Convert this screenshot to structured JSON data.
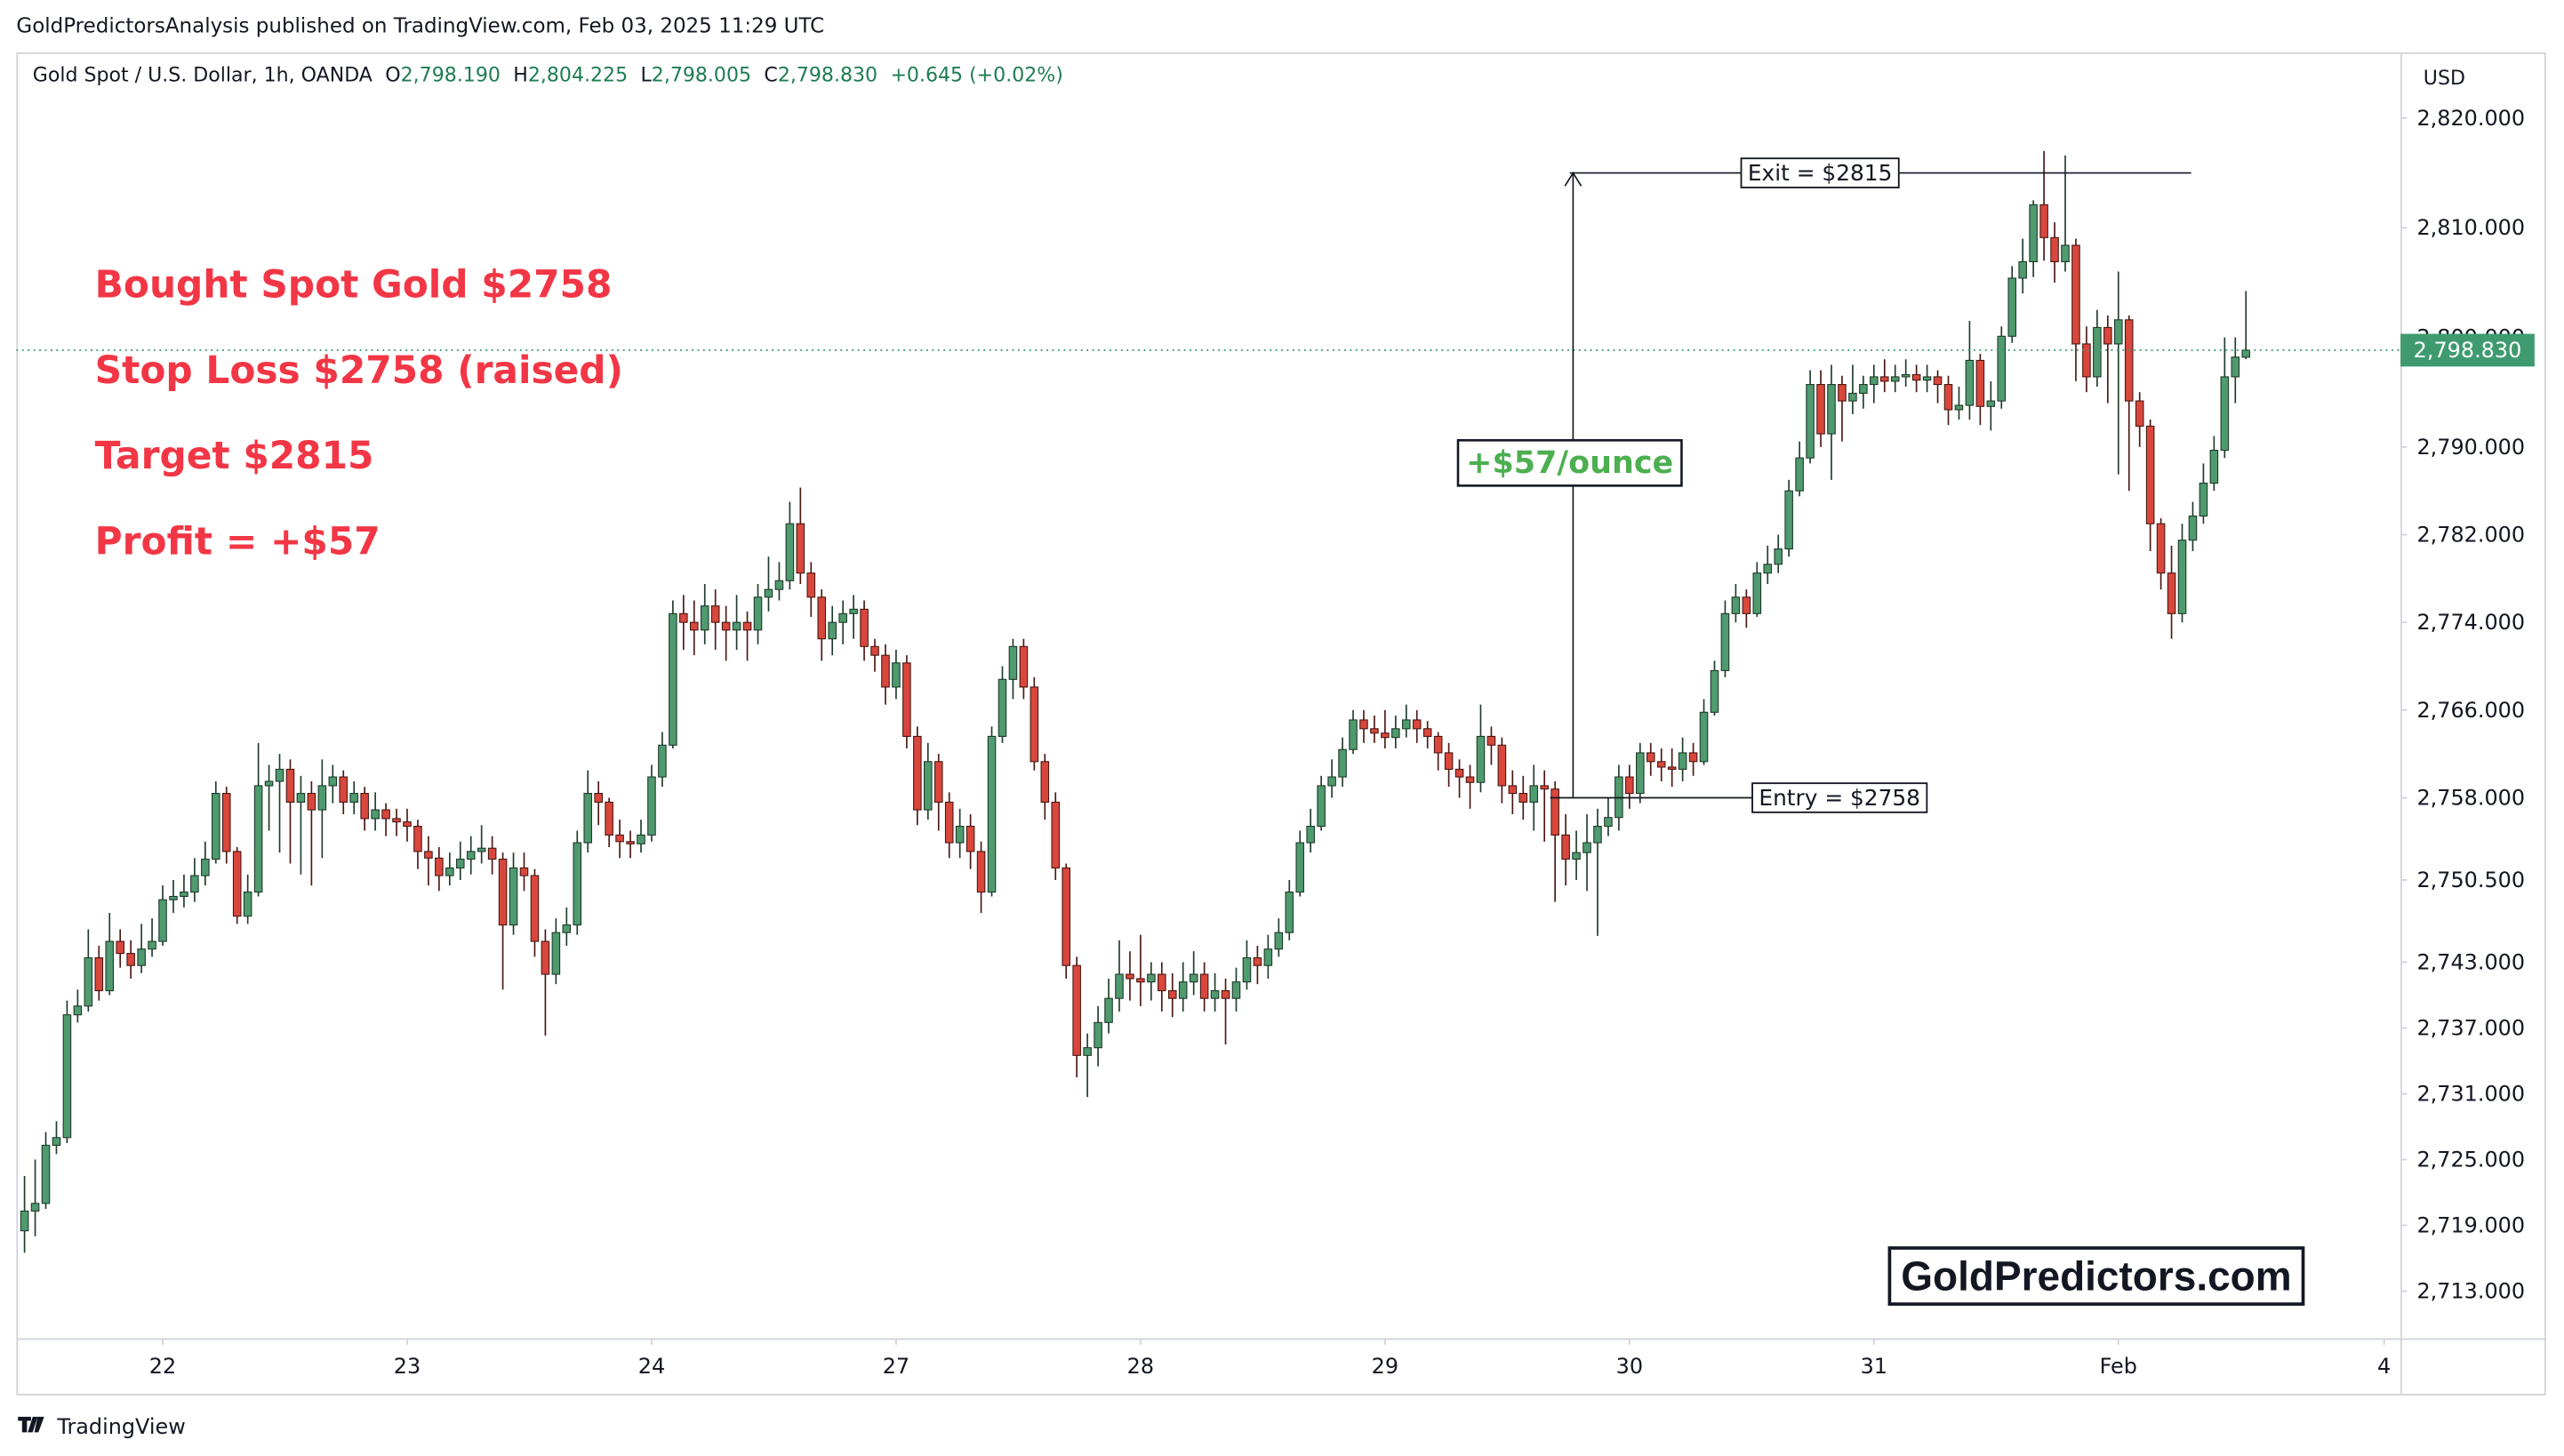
{
  "published": "GoldPredictorsAnalysis published on TradingView.com, Feb 03, 2025 11:29 UTC",
  "header": {
    "symbol": "Gold Spot / U.S. Dollar, 1h, OANDA",
    "fields": [
      {
        "label": "O",
        "value": "2,798.190"
      },
      {
        "label": "H",
        "value": "2,804.225"
      },
      {
        "label": "L",
        "value": "2,798.005"
      },
      {
        "label": "C",
        "value": "2,798.830"
      }
    ],
    "change": "+0.645 (+0.02%)"
  },
  "chart_data": {
    "type": "candlestick",
    "currency": "USD",
    "up_color": "#4f9a6e",
    "down_color": "#d9473c",
    "grid": false,
    "xlim": [
      -0.77,
      223.54
    ],
    "xticks": [
      {
        "value": 13,
        "label": "22"
      },
      {
        "value": 36,
        "label": "23"
      },
      {
        "value": 59,
        "label": "24"
      },
      {
        "value": 82,
        "label": "27"
      },
      {
        "value": 105,
        "label": "28"
      },
      {
        "value": 128,
        "label": "29"
      },
      {
        "value": 151,
        "label": "30"
      },
      {
        "value": 174,
        "label": "31"
      },
      {
        "value": 197,
        "label": "Feb"
      },
      {
        "value": 222,
        "label": "4"
      }
    ],
    "ylim": [
      2708.7,
      2826.0
    ],
    "yticks": [
      {
        "value": 2820,
        "label": "2,820.000"
      },
      {
        "value": 2810,
        "label": "2,810.000"
      },
      {
        "value": 2800,
        "label": "2,800.000"
      },
      {
        "value": 2790,
        "label": "2,790.000"
      },
      {
        "value": 2782,
        "label": "2,782.000"
      },
      {
        "value": 2774,
        "label": "2,774.000"
      },
      {
        "value": 2766,
        "label": "2,766.000"
      },
      {
        "value": 2758,
        "label": "2,758.000"
      },
      {
        "value": 2750.5,
        "label": "2,750.500"
      },
      {
        "value": 2743,
        "label": "2,743.000"
      },
      {
        "value": 2737,
        "label": "2,737.000"
      },
      {
        "value": 2731,
        "label": "2,731.000"
      },
      {
        "value": 2725,
        "label": "2,725.000"
      },
      {
        "value": 2719,
        "label": "2,719.000"
      },
      {
        "value": 2713,
        "label": "2,713.000"
      }
    ],
    "last_price": {
      "value": 2798.83,
      "label": "2,798.830"
    },
    "notes": [
      "Bought Spot Gold $2758",
      "Stop Loss $2758 (raised)",
      "Target $2815",
      "Profit = +$57"
    ],
    "levels": [
      {
        "label": "Exit = $2815",
        "value": 2815
      },
      {
        "label": "Entry = $2758",
        "value": 2758
      }
    ],
    "gain_label": "+$57/ounce",
    "open": [
      2718.5,
      2720.3,
      2721.0,
      2726.3,
      2727.0,
      2738.2,
      2739.0,
      2743.4,
      2740.4,
      2744.9,
      2743.8,
      2742.7,
      2744.2,
      2744.9,
      2748.7,
      2749.0,
      2749.4,
      2750.9,
      2752.4,
      2758.4,
      2753.1,
      2747.2,
      2749.4,
      2759.1,
      2759.5,
      2760.6,
      2757.6,
      2758.4,
      2756.9,
      2759.1,
      2759.9,
      2757.6,
      2758.4,
      2756.1,
      2756.9,
      2756.1,
      2755.8,
      2755.4,
      2753.1,
      2752.5,
      2750.9,
      2751.6,
      2752.4,
      2753.1,
      2753.4,
      2752.4,
      2746.4,
      2751.6,
      2750.9,
      2744.9,
      2741.9,
      2745.7,
      2746.4,
      2753.9,
      2758.4,
      2757.6,
      2754.6,
      2754.0,
      2753.8,
      2754.6,
      2759.9,
      2762.8,
      2774.8,
      2774.0,
      2773.3,
      2775.5,
      2774.0,
      2773.3,
      2774.0,
      2773.3,
      2776.3,
      2777.0,
      2777.8,
      2783.0,
      2778.5,
      2776.3,
      2772.5,
      2774.0,
      2774.8,
      2775.2,
      2771.8,
      2771.0,
      2768.1,
      2770.3,
      2763.6,
      2756.9,
      2761.3,
      2757.6,
      2753.9,
      2755.4,
      2753.1,
      2749.4,
      2763.6,
      2768.8,
      2771.8,
      2768.1,
      2761.3,
      2757.6,
      2751.6,
      2742.7,
      2734.5,
      2735.2,
      2737.5,
      2739.7,
      2741.9,
      2741.5,
      2741.2,
      2741.9,
      2740.4,
      2739.7,
      2741.2,
      2741.9,
      2739.7,
      2740.4,
      2739.7,
      2741.2,
      2743.4,
      2742.7,
      2744.2,
      2745.7,
      2749.4,
      2753.9,
      2755.4,
      2759.1,
      2759.9,
      2762.4,
      2765.1,
      2764.3,
      2763.9,
      2763.5,
      2764.3,
      2765.1,
      2764.3,
      2763.6,
      2762.1,
      2760.6,
      2759.9,
      2759.4,
      2763.6,
      2762.8,
      2759.1,
      2758.4,
      2757.6,
      2759.1,
      2758.8,
      2754.6,
      2752.4,
      2753.0,
      2753.9,
      2755.4,
      2756.2,
      2759.9,
      2758.4,
      2762.1,
      2761.3,
      2760.8,
      2760.6,
      2762.1,
      2761.3,
      2765.8,
      2769.6,
      2774.8,
      2776.3,
      2774.8,
      2778.5,
      2779.3,
      2780.7,
      2786.0,
      2789.0,
      2795.7,
      2791.2,
      2795.7,
      2794.2,
      2794.9,
      2795.7,
      2796.4,
      2796.0,
      2796.4,
      2796.6,
      2796.1,
      2796.4,
      2795.7,
      2793.4,
      2793.8,
      2797.9,
      2793.7,
      2794.2,
      2800.1,
      2805.4,
      2806.9,
      2812.1,
      2809.1,
      2806.9,
      2808.4,
      2799.4,
      2796.4,
      2800.9,
      2799.4,
      2801.6,
      2794.2,
      2791.9,
      2783.0,
      2778.5,
      2774.8,
      2781.5,
      2783.7,
      2786.7,
      2789.7,
      2796.4,
      2798.19
    ],
    "high": [
      2723.5,
      2725.0,
      2727.5,
      2728.5,
      2739.5,
      2740.5,
      2746.0,
      2744.5,
      2747.5,
      2746.0,
      2745.0,
      2746.5,
      2747.0,
      2750.0,
      2750.5,
      2751.0,
      2752.5,
      2754.0,
      2759.5,
      2759.0,
      2753.5,
      2751.0,
      2763.0,
      2761.0,
      2762.0,
      2761.5,
      2760.0,
      2759.5,
      2761.5,
      2761.0,
      2760.5,
      2759.5,
      2759.0,
      2758.5,
      2757.5,
      2757.0,
      2757.0,
      2756.0,
      2754.5,
      2753.5,
      2753.0,
      2754.0,
      2754.5,
      2755.5,
      2754.5,
      2753.0,
      2753.0,
      2753.0,
      2751.5,
      2746.0,
      2747.0,
      2748.0,
      2755.0,
      2760.5,
      2759.5,
      2758.0,
      2756.0,
      2755.0,
      2756.0,
      2761.0,
      2764.0,
      2776.0,
      2776.5,
      2776.0,
      2777.5,
      2777.0,
      2775.5,
      2776.5,
      2775.0,
      2777.5,
      2780.0,
      2779.5,
      2785.0,
      2786.3,
      2779.5,
      2777.0,
      2775.5,
      2776.0,
      2776.5,
      2776.0,
      2772.5,
      2772.0,
      2771.5,
      2771.0,
      2764.5,
      2763.0,
      2762.0,
      2758.5,
      2757.0,
      2756.5,
      2754.0,
      2764.5,
      2770.0,
      2772.5,
      2772.5,
      2769.0,
      2762.0,
      2758.5,
      2752.0,
      2743.5,
      2736.5,
      2739.0,
      2741.5,
      2745.0,
      2744.0,
      2745.5,
      2743.0,
      2743.0,
      2742.0,
      2743.0,
      2744.0,
      2743.0,
      2742.0,
      2741.5,
      2742.5,
      2745.0,
      2744.5,
      2745.5,
      2747.0,
      2750.5,
      2755.0,
      2757.0,
      2760.0,
      2761.5,
      2763.5,
      2766.0,
      2766.0,
      2765.5,
      2766.0,
      2765.5,
      2766.5,
      2766.0,
      2765.0,
      2764.0,
      2763.0,
      2761.5,
      2761.0,
      2766.5,
      2764.5,
      2763.5,
      2760.5,
      2760.0,
      2761.0,
      2760.5,
      2759.5,
      2756.5,
      2755.0,
      2756.5,
      2757.0,
      2758.0,
      2761.0,
      2761.0,
      2763.0,
      2763.0,
      2762.5,
      2762.5,
      2763.5,
      2763.0,
      2767.0,
      2770.5,
      2776.0,
      2777.5,
      2777.0,
      2779.5,
      2781.0,
      2782.0,
      2787.0,
      2790.5,
      2797.0,
      2797.0,
      2797.5,
      2796.5,
      2797.5,
      2796.5,
      2797.5,
      2798.0,
      2797.5,
      2798.0,
      2797.5,
      2797.5,
      2797.0,
      2796.5,
      2795.5,
      2801.5,
      2798.5,
      2796.0,
      2801.0,
      2806.5,
      2809.0,
      2812.5,
      2817.0,
      2810.5,
      2816.6,
      2809.0,
      2801.0,
      2802.5,
      2802.0,
      2806.0,
      2802.0,
      2795.0,
      2792.5,
      2783.5,
      2781.0,
      2783.0,
      2785.0,
      2788.5,
      2791.0,
      2800.0,
      2800.0,
      2804.225
    ],
    "low": [
      2716.5,
      2718.0,
      2720.5,
      2725.5,
      2726.5,
      2737.5,
      2738.5,
      2739.5,
      2740.0,
      2742.5,
      2741.5,
      2742.0,
      2743.5,
      2744.5,
      2747.5,
      2748.0,
      2748.5,
      2750.0,
      2752.0,
      2752.0,
      2746.5,
      2746.5,
      2749.0,
      2755.0,
      2753.0,
      2752.0,
      2751.0,
      2750.0,
      2752.5,
      2757.5,
      2756.5,
      2756.5,
      2755.0,
      2755.0,
      2754.5,
      2754.5,
      2754.0,
      2751.5,
      2750.0,
      2749.5,
      2750.0,
      2750.5,
      2751.0,
      2752.0,
      2751.0,
      2740.5,
      2745.5,
      2749.5,
      2743.5,
      2736.3,
      2741.0,
      2744.5,
      2745.5,
      2753.0,
      2755.5,
      2753.5,
      2752.5,
      2752.5,
      2753.0,
      2754.0,
      2759.0,
      2762.5,
      2771.5,
      2771.0,
      2772.0,
      2771.5,
      2770.5,
      2771.5,
      2770.5,
      2772.0,
      2775.0,
      2776.0,
      2777.0,
      2777.5,
      2774.5,
      2770.5,
      2771.0,
      2772.0,
      2772.5,
      2770.5,
      2769.5,
      2766.5,
      2767.0,
      2762.5,
      2755.5,
      2756.0,
      2755.0,
      2752.5,
      2752.5,
      2751.5,
      2747.5,
      2749.0,
      2763.0,
      2767.0,
      2767.0,
      2760.5,
      2756.0,
      2750.5,
      2741.5,
      2732.5,
      2730.7,
      2733.5,
      2736.5,
      2738.5,
      2739.5,
      2739.0,
      2739.5,
      2738.5,
      2738.0,
      2738.5,
      2740.0,
      2738.5,
      2738.5,
      2735.5,
      2738.5,
      2740.5,
      2741.0,
      2741.5,
      2743.5,
      2745.0,
      2749.0,
      2753.0,
      2755.0,
      2758.0,
      2759.0,
      2762.0,
      2763.0,
      2763.0,
      2762.5,
      2762.5,
      2763.5,
      2763.0,
      2762.5,
      2760.5,
      2759.0,
      2758.0,
      2757.0,
      2758.5,
      2761.0,
      2757.5,
      2756.5,
      2756.0,
      2755.0,
      2754.0,
      2748.5,
      2750.0,
      2750.5,
      2749.5,
      2745.4,
      2754.5,
      2755.0,
      2757.0,
      2757.5,
      2760.0,
      2759.5,
      2759.0,
      2759.5,
      2760.0,
      2761.0,
      2765.5,
      2769.0,
      2774.0,
      2773.5,
      2774.5,
      2777.5,
      2778.5,
      2780.0,
      2785.5,
      2788.5,
      2790.0,
      2787.0,
      2790.5,
      2793.0,
      2793.5,
      2794.0,
      2795.0,
      2795.0,
      2795.5,
      2795.0,
      2795.0,
      2794.0,
      2792.0,
      2792.5,
      2792.5,
      2792.0,
      2791.5,
      2793.5,
      2799.5,
      2804.0,
      2805.5,
      2807.0,
      2805.0,
      2806.0,
      2796.0,
      2795.0,
      2795.5,
      2794.0,
      2787.5,
      2786.0,
      2790.0,
      2780.5,
      2777.0,
      2772.5,
      2774.0,
      2780.5,
      2783.0,
      2786.0,
      2789.0,
      2794.0,
      2798.005
    ],
    "close": [
      2720.3,
      2721.0,
      2726.3,
      2727.0,
      2738.2,
      2739.0,
      2743.4,
      2740.4,
      2744.9,
      2743.8,
      2742.7,
      2744.2,
      2744.9,
      2748.7,
      2749.0,
      2749.4,
      2750.9,
      2752.4,
      2758.4,
      2753.1,
      2747.2,
      2749.4,
      2759.1,
      2759.5,
      2760.6,
      2757.6,
      2758.4,
      2756.9,
      2759.1,
      2759.9,
      2757.6,
      2758.4,
      2756.1,
      2756.9,
      2756.1,
      2755.8,
      2755.4,
      2753.1,
      2752.5,
      2750.9,
      2751.6,
      2752.4,
      2753.1,
      2753.4,
      2752.4,
      2746.4,
      2751.6,
      2750.9,
      2744.9,
      2741.9,
      2745.7,
      2746.4,
      2753.9,
      2758.4,
      2757.6,
      2754.6,
      2754.0,
      2753.8,
      2754.6,
      2759.9,
      2762.8,
      2774.8,
      2774.0,
      2773.3,
      2775.5,
      2774.0,
      2773.3,
      2774.0,
      2773.3,
      2776.3,
      2777.0,
      2777.8,
      2783.0,
      2778.5,
      2776.3,
      2772.5,
      2774.0,
      2774.8,
      2775.2,
      2771.8,
      2771.0,
      2768.1,
      2770.3,
      2763.6,
      2756.9,
      2761.3,
      2757.6,
      2753.9,
      2755.4,
      2753.1,
      2749.4,
      2763.6,
      2768.8,
      2771.8,
      2768.1,
      2761.3,
      2757.6,
      2751.6,
      2742.7,
      2734.5,
      2735.2,
      2737.5,
      2739.7,
      2741.9,
      2741.5,
      2741.2,
      2741.9,
      2740.4,
      2739.7,
      2741.2,
      2741.9,
      2739.7,
      2740.4,
      2739.7,
      2741.2,
      2743.4,
      2742.7,
      2744.2,
      2745.7,
      2749.4,
      2753.9,
      2755.4,
      2759.1,
      2759.9,
      2762.4,
      2765.1,
      2764.3,
      2763.9,
      2763.5,
      2764.3,
      2765.1,
      2764.3,
      2763.6,
      2762.1,
      2760.6,
      2759.9,
      2759.4,
      2763.6,
      2762.8,
      2759.1,
      2758.4,
      2757.6,
      2759.1,
      2758.8,
      2754.6,
      2752.4,
      2753.0,
      2753.9,
      2755.4,
      2756.2,
      2759.9,
      2758.4,
      2762.1,
      2761.3,
      2760.8,
      2760.6,
      2762.1,
      2761.3,
      2765.8,
      2769.6,
      2774.8,
      2776.3,
      2774.8,
      2778.5,
      2779.3,
      2780.7,
      2786.0,
      2789.0,
      2795.7,
      2791.2,
      2795.7,
      2794.2,
      2794.9,
      2795.7,
      2796.4,
      2796.0,
      2796.4,
      2796.6,
      2796.1,
      2796.4,
      2795.7,
      2793.4,
      2793.8,
      2797.9,
      2793.7,
      2794.2,
      2800.1,
      2805.4,
      2806.9,
      2812.1,
      2809.1,
      2806.9,
      2808.4,
      2799.4,
      2796.4,
      2800.9,
      2799.4,
      2801.6,
      2794.2,
      2791.9,
      2783.0,
      2778.5,
      2774.8,
      2781.5,
      2783.7,
      2786.7,
      2789.7,
      2796.4,
      2798.2,
      2798.83
    ]
  },
  "watermark": "GoldPredictors.com",
  "footer": {
    "brand": "TradingView"
  }
}
